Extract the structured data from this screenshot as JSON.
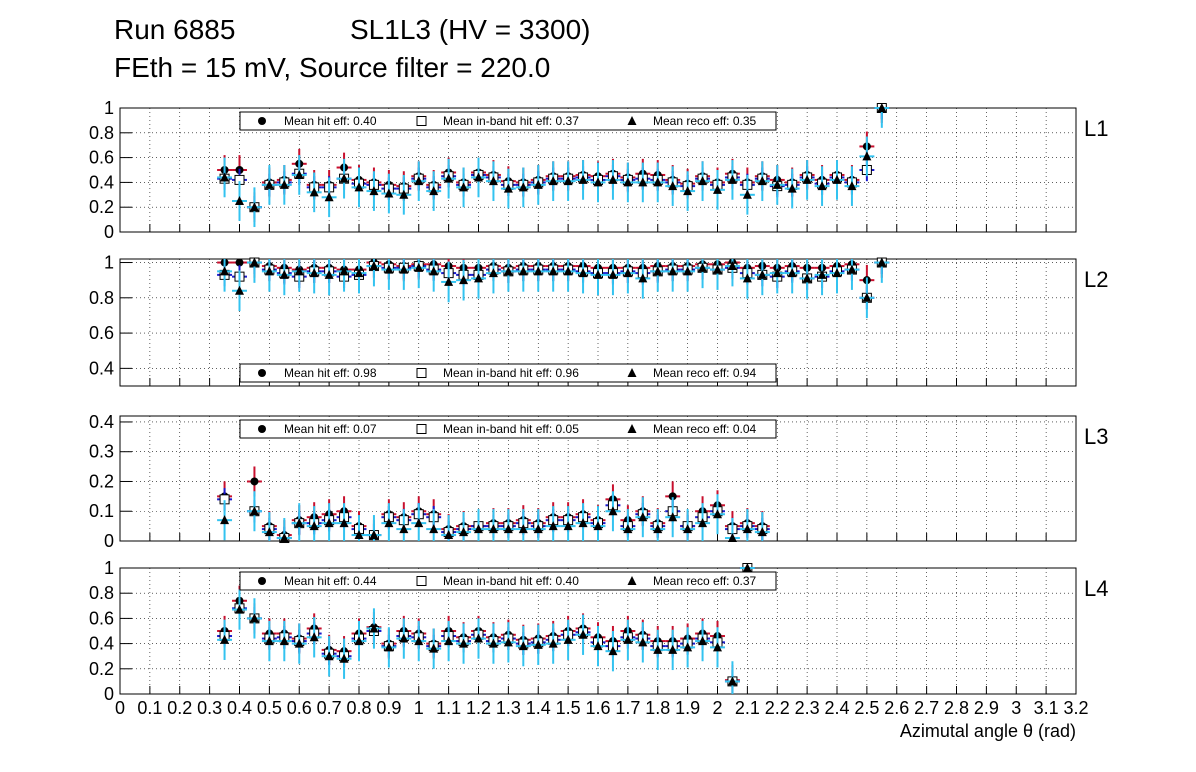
{
  "title": {
    "run": "Run 6885",
    "chamber": "SL1L3 (HV = 3300)",
    "settings": "FEth = 15 mV, Source filter = 220.0"
  },
  "colors": {
    "hit": "#c8102e",
    "inband": "#1a1acc",
    "reco": "#33c3f0",
    "grid": "#000000"
  },
  "chart_data": [
    {
      "type": "scatter",
      "layer": "L1",
      "ylim": [
        0,
        1
      ],
      "yticks": [
        "0",
        "0.2",
        "0.4",
        "0.6",
        "0.8",
        "1"
      ],
      "legend": {
        "hit": "Mean hit  eff: 0.40",
        "inband": "Mean in-band hit eff: 0.37",
        "reco": "Mean reco eff: 0.35",
        "placement": "top"
      },
      "x": [
        0.35,
        0.4,
        0.45,
        0.5,
        0.55,
        0.6,
        0.65,
        0.7,
        0.75,
        0.8,
        0.85,
        0.9,
        0.95,
        1.0,
        1.05,
        1.1,
        1.15,
        1.2,
        1.25,
        1.3,
        1.35,
        1.4,
        1.45,
        1.5,
        1.55,
        1.6,
        1.65,
        1.7,
        1.75,
        1.8,
        1.85,
        1.9,
        1.95,
        2.0,
        2.05,
        2.1,
        2.15,
        2.2,
        2.25,
        2.3,
        2.35,
        2.4,
        2.45,
        2.5,
        2.55,
        2.6,
        2.65,
        2.7
      ],
      "series": [
        {
          "name": "Mean hit eff",
          "values": [
            0.5,
            0.5,
            0.2,
            0.4,
            0.42,
            0.55,
            0.38,
            0.38,
            0.52,
            0.42,
            0.4,
            0.38,
            0.37,
            0.45,
            0.38,
            0.48,
            0.4,
            0.48,
            0.46,
            0.41,
            0.4,
            0.42,
            0.45,
            0.45,
            0.46,
            0.45,
            0.47,
            0.44,
            0.47,
            0.46,
            0.42,
            0.39,
            0.45,
            0.4,
            0.47,
            0.4,
            0.45,
            0.42,
            0.4,
            0.46,
            0.42,
            0.46,
            0.42,
            0.69,
            1.0,
            null,
            null,
            null
          ]
        },
        {
          "name": "Mean in-band hit eff",
          "values": [
            0.43,
            0.42,
            0.2,
            0.38,
            0.4,
            0.47,
            0.36,
            0.36,
            0.43,
            0.39,
            0.38,
            0.35,
            0.35,
            0.43,
            0.36,
            0.45,
            0.38,
            0.46,
            0.44,
            0.38,
            0.38,
            0.4,
            0.43,
            0.43,
            0.44,
            0.42,
            0.45,
            0.42,
            0.43,
            0.42,
            0.4,
            0.37,
            0.43,
            0.38,
            0.44,
            0.38,
            0.43,
            0.37,
            0.38,
            0.44,
            0.39,
            0.44,
            0.4,
            0.5,
            1.0,
            null,
            null,
            null
          ]
        },
        {
          "name": "Mean reco eff",
          "values": [
            0.44,
            0.25,
            0.2,
            0.38,
            0.38,
            0.46,
            0.32,
            0.28,
            0.43,
            0.36,
            0.33,
            0.31,
            0.3,
            0.41,
            0.33,
            0.43,
            0.36,
            0.44,
            0.41,
            0.35,
            0.36,
            0.38,
            0.41,
            0.41,
            0.42,
            0.4,
            0.42,
            0.4,
            0.4,
            0.4,
            0.37,
            0.33,
            0.41,
            0.34,
            0.42,
            0.3,
            0.41,
            0.38,
            0.35,
            0.42,
            0.37,
            0.42,
            0.37,
            0.61,
            1.0,
            null,
            null,
            null
          ]
        }
      ]
    },
    {
      "type": "scatter",
      "layer": "L2",
      "ylim": [
        0.3,
        1.02
      ],
      "yticks": [
        "0.4",
        "0.6",
        "0.8",
        "1"
      ],
      "legend": {
        "hit": "Mean hit  eff: 0.98",
        "inband": "Mean in-band hit eff: 0.96",
        "reco": "Mean reco eff: 0.94",
        "placement": "bottom"
      },
      "x": [
        0.35,
        0.4,
        0.45,
        0.5,
        0.55,
        0.6,
        0.65,
        0.7,
        0.75,
        0.8,
        0.85,
        0.9,
        0.95,
        1.0,
        1.05,
        1.1,
        1.15,
        1.2,
        1.25,
        1.3,
        1.35,
        1.4,
        1.45,
        1.5,
        1.55,
        1.6,
        1.65,
        1.7,
        1.75,
        1.8,
        1.85,
        1.9,
        1.95,
        2.0,
        2.05,
        2.1,
        2.15,
        2.2,
        2.25,
        2.3,
        2.35,
        2.4,
        2.45,
        2.5,
        2.55,
        2.6,
        2.65,
        2.7
      ],
      "series": [
        {
          "name": "Mean hit eff",
          "values": [
            1.0,
            1.0,
            1.0,
            0.98,
            0.97,
            0.96,
            0.97,
            0.97,
            0.96,
            0.96,
            1.0,
            0.99,
            0.98,
            0.99,
            0.99,
            0.98,
            0.97,
            0.97,
            0.98,
            0.97,
            0.98,
            0.98,
            0.98,
            0.98,
            0.98,
            0.97,
            0.97,
            0.97,
            0.97,
            0.98,
            0.98,
            0.98,
            0.99,
            0.99,
            1.0,
            0.97,
            0.98,
            0.97,
            0.98,
            0.97,
            0.97,
            0.98,
            0.99,
            0.9,
            1.0,
            null,
            null,
            null
          ]
        },
        {
          "name": "Mean in-band hit eff",
          "values": [
            0.93,
            0.92,
            1.0,
            0.96,
            0.94,
            0.92,
            0.95,
            0.95,
            0.92,
            0.93,
            0.98,
            0.97,
            0.97,
            0.98,
            0.96,
            0.94,
            0.93,
            0.93,
            0.96,
            0.95,
            0.96,
            0.96,
            0.96,
            0.96,
            0.95,
            0.94,
            0.94,
            0.95,
            0.94,
            0.95,
            0.96,
            0.96,
            0.97,
            0.96,
            0.97,
            0.94,
            0.93,
            0.92,
            0.95,
            0.91,
            0.92,
            0.95,
            0.96,
            0.8,
            1.0,
            null,
            null,
            null
          ]
        },
        {
          "name": "Mean reco eff",
          "values": [
            0.95,
            0.84,
            1.0,
            0.95,
            0.93,
            0.95,
            0.94,
            0.93,
            0.95,
            0.94,
            0.98,
            0.96,
            0.96,
            0.97,
            0.95,
            0.89,
            0.9,
            0.91,
            0.94,
            0.95,
            0.95,
            0.95,
            0.95,
            0.95,
            0.94,
            0.93,
            0.93,
            0.94,
            0.91,
            0.95,
            0.95,
            0.95,
            0.97,
            0.96,
            0.98,
            0.91,
            0.93,
            0.94,
            0.94,
            0.91,
            0.93,
            0.94,
            0.96,
            0.8,
            1.0,
            null,
            null,
            null
          ]
        }
      ]
    },
    {
      "type": "scatter",
      "layer": "L3",
      "ylim": [
        0,
        0.42
      ],
      "yticks": [
        "0",
        "0.1",
        "0.2",
        "0.3",
        "0.4"
      ],
      "legend": {
        "hit": "Mean hit  eff: 0.07",
        "inband": "Mean in-band hit eff: 0.05",
        "reco": "Mean reco eff: 0.04",
        "placement": "top"
      },
      "x": [
        0.35,
        0.4,
        0.45,
        0.5,
        0.55,
        0.6,
        0.65,
        0.7,
        0.75,
        0.8,
        0.85,
        0.9,
        0.95,
        1.0,
        1.05,
        1.1,
        1.15,
        1.2,
        1.25,
        1.3,
        1.35,
        1.4,
        1.45,
        1.5,
        1.55,
        1.6,
        1.65,
        1.7,
        1.75,
        1.8,
        1.85,
        1.9,
        1.95,
        2.0,
        2.05,
        2.1,
        2.15,
        2.2,
        2.25,
        2.3,
        2.35,
        2.4,
        2.45,
        2.5,
        2.55,
        2.6,
        2.65,
        2.7
      ],
      "series": [
        {
          "name": "Mean hit eff",
          "values": [
            0.15,
            null,
            0.2,
            0.05,
            0.02,
            0.07,
            0.08,
            0.09,
            0.1,
            0.05,
            0.02,
            0.09,
            0.08,
            0.1,
            0.09,
            0.04,
            0.05,
            0.05,
            0.06,
            0.06,
            0.07,
            0.06,
            0.08,
            0.08,
            0.09,
            0.07,
            0.14,
            0.07,
            0.1,
            0.06,
            0.15,
            0.05,
            0.1,
            0.12,
            0.05,
            0.06,
            0.05,
            null,
            null,
            null,
            null,
            null,
            null,
            null,
            null,
            null,
            null,
            null
          ]
        },
        {
          "name": "Mean in-band hit eff",
          "values": [
            0.14,
            null,
            0.1,
            0.04,
            0.01,
            0.06,
            0.06,
            0.07,
            0.08,
            0.04,
            0.02,
            0.08,
            0.07,
            0.09,
            0.08,
            0.03,
            0.04,
            0.05,
            0.05,
            0.05,
            0.06,
            0.05,
            0.07,
            0.07,
            0.08,
            0.06,
            0.12,
            0.05,
            0.09,
            0.05,
            0.1,
            0.05,
            0.08,
            0.1,
            0.04,
            0.05,
            0.04,
            null,
            null,
            null,
            null,
            null,
            null,
            null,
            null,
            null,
            null,
            null
          ]
        },
        {
          "name": "Mean reco eff",
          "values": [
            0.07,
            null,
            0.1,
            0.03,
            0.01,
            0.06,
            0.05,
            0.06,
            0.06,
            0.02,
            0.02,
            0.06,
            0.04,
            0.06,
            0.04,
            0.02,
            0.03,
            0.04,
            0.04,
            0.04,
            0.04,
            0.04,
            0.05,
            0.05,
            0.06,
            0.05,
            0.1,
            0.04,
            0.08,
            0.04,
            0.08,
            0.04,
            0.06,
            0.09,
            0.01,
            0.04,
            0.03,
            null,
            null,
            null,
            null,
            null,
            null,
            null,
            null,
            null,
            null,
            null
          ]
        }
      ]
    },
    {
      "type": "scatter",
      "layer": "L4",
      "ylim": [
        0,
        1
      ],
      "yticks": [
        "0",
        "0.2",
        "0.4",
        "0.6",
        "0.8",
        "1"
      ],
      "legend": {
        "hit": "Mean hit  eff: 0.44",
        "inband": "Mean in-band hit eff: 0.40",
        "reco": "Mean reco eff: 0.37",
        "placement": "top"
      },
      "x": [
        0.35,
        0.4,
        0.45,
        0.5,
        0.55,
        0.6,
        0.65,
        0.7,
        0.75,
        0.8,
        0.85,
        0.9,
        0.95,
        1.0,
        1.05,
        1.1,
        1.15,
        1.2,
        1.25,
        1.3,
        1.35,
        1.4,
        1.45,
        1.5,
        1.55,
        1.6,
        1.65,
        1.7,
        1.75,
        1.8,
        1.85,
        1.9,
        1.95,
        2.0,
        2.05,
        2.1,
        2.15,
        2.2,
        2.25,
        2.3,
        2.35,
        2.4,
        2.45,
        2.5,
        2.55,
        2.6,
        2.65,
        2.7
      ],
      "series": [
        {
          "name": "Mean hit eff",
          "values": [
            0.5,
            0.74,
            0.6,
            0.48,
            0.48,
            0.44,
            0.52,
            0.35,
            0.34,
            0.48,
            0.53,
            0.4,
            0.5,
            0.48,
            0.4,
            0.5,
            0.45,
            0.5,
            0.45,
            0.47,
            0.43,
            0.44,
            0.46,
            0.5,
            0.52,
            0.45,
            0.42,
            0.5,
            0.47,
            0.42,
            0.42,
            0.44,
            0.48,
            0.46,
            0.11,
            1.0,
            null,
            null,
            null,
            null,
            null,
            null,
            null,
            null,
            null,
            null,
            null,
            null
          ]
        },
        {
          "name": "Mean in-band hit eff",
          "values": [
            0.46,
            0.68,
            0.6,
            0.44,
            0.45,
            0.42,
            0.48,
            0.32,
            0.3,
            0.44,
            0.5,
            0.38,
            0.46,
            0.45,
            0.38,
            0.46,
            0.42,
            0.47,
            0.42,
            0.44,
            0.4,
            0.41,
            0.43,
            0.47,
            0.49,
            0.41,
            0.38,
            0.45,
            0.44,
            0.38,
            0.38,
            0.4,
            0.44,
            0.41,
            0.1,
            1.0,
            null,
            null,
            null,
            null,
            null,
            null,
            null,
            null,
            null,
            null,
            null,
            null
          ]
        },
        {
          "name": "Mean reco eff",
          "values": [
            0.43,
            0.67,
            0.6,
            0.42,
            0.42,
            0.4,
            0.45,
            0.3,
            0.28,
            0.42,
            0.52,
            0.37,
            0.44,
            0.42,
            0.36,
            0.42,
            0.4,
            0.44,
            0.4,
            0.41,
            0.38,
            0.39,
            0.4,
            0.43,
            0.47,
            0.38,
            0.34,
            0.43,
            0.41,
            0.35,
            0.35,
            0.37,
            0.42,
            0.37,
            0.1,
            1.0,
            null,
            null,
            null,
            null,
            null,
            null,
            null,
            null,
            null,
            null,
            null,
            null
          ]
        }
      ]
    }
  ],
  "x_axis": {
    "xlim": [
      0,
      3.2
    ],
    "ticks": [
      "0",
      "0.1",
      "0.2",
      "0.3",
      "0.4",
      "0.5",
      "0.6",
      "0.7",
      "0.8",
      "0.9",
      "1",
      "1.1",
      "1.2",
      "1.3",
      "1.4",
      "1.5",
      "1.6",
      "1.7",
      "1.8",
      "1.9",
      "2",
      "2.1",
      "2.2",
      "2.3",
      "2.4",
      "2.5",
      "2.6",
      "2.7",
      "2.8",
      "2.9",
      "3",
      "3.1",
      "3.2"
    ],
    "xlabel": "Azimutal angle θ (rad)"
  }
}
